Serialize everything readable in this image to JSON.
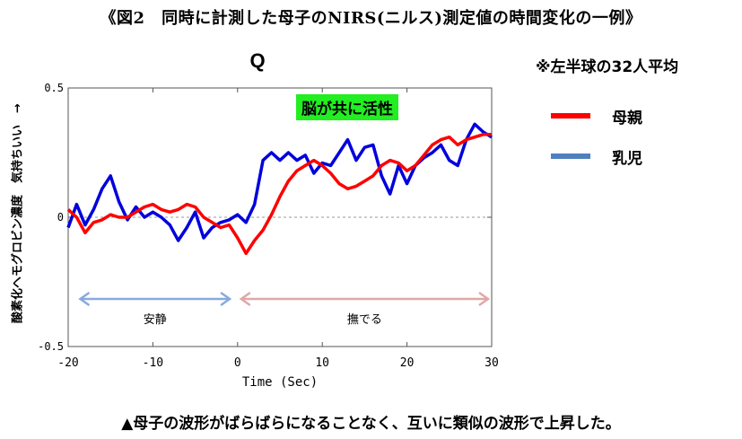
{
  "page": {
    "title": "《図2　同時に計測した母子のNIRS(ニルス)測定値の時間変化の一例》",
    "note": "※左半球の32人平均",
    "caption": "▲母子の波形がばらばらになることなく、互いに類似の波形で上昇した。",
    "highlight": "脳が共に活性"
  },
  "chart_data": {
    "type": "line",
    "title": "Q",
    "xlabel": "Time (Sec)",
    "ylabel": "酸素化ヘモグロビン濃度　気持ちいい　→",
    "xlim": [
      -20,
      30
    ],
    "ylim": [
      -0.5,
      0.5
    ],
    "x_ticks": [
      "-20",
      "-10",
      "0",
      "10",
      "20",
      "30"
    ],
    "y_ticks": [
      "0.5",
      "0",
      "-0.5"
    ],
    "grid": false,
    "legend_position": "right",
    "series": [
      {
        "name": "母親",
        "color": "#ff0000",
        "x": [
          -20,
          -19,
          -18,
          -17,
          -16,
          -15,
          -14,
          -13,
          -12,
          -11,
          -10,
          -9,
          -8,
          -7,
          -6,
          -5,
          -4,
          -3,
          -2,
          -1,
          0,
          1,
          2,
          3,
          4,
          5,
          6,
          7,
          8,
          9,
          10,
          11,
          12,
          13,
          14,
          15,
          16,
          17,
          18,
          19,
          20,
          21,
          22,
          23,
          24,
          25,
          26,
          27,
          28,
          29,
          30
        ],
        "y": [
          0.03,
          0.0,
          -0.06,
          -0.02,
          -0.01,
          0.01,
          0.0,
          0.0,
          0.02,
          0.04,
          0.05,
          0.03,
          0.02,
          0.03,
          0.05,
          0.04,
          0.0,
          -0.02,
          -0.04,
          -0.03,
          -0.08,
          -0.14,
          -0.09,
          -0.05,
          0.01,
          0.08,
          0.14,
          0.18,
          0.2,
          0.22,
          0.2,
          0.17,
          0.13,
          0.11,
          0.12,
          0.14,
          0.16,
          0.2,
          0.22,
          0.21,
          0.18,
          0.2,
          0.24,
          0.28,
          0.3,
          0.31,
          0.28,
          0.3,
          0.31,
          0.32,
          0.32
        ]
      },
      {
        "name": "乳児",
        "color": "#0000dd",
        "x": [
          -20,
          -19,
          -18,
          -17,
          -16,
          -15,
          -14,
          -13,
          -12,
          -11,
          -10,
          -9,
          -8,
          -7,
          -6,
          -5,
          -4,
          -3,
          -2,
          -1,
          0,
          1,
          2,
          3,
          4,
          5,
          6,
          7,
          8,
          9,
          10,
          11,
          12,
          13,
          14,
          15,
          16,
          17,
          18,
          19,
          20,
          21,
          22,
          23,
          24,
          25,
          26,
          27,
          28,
          29,
          30
        ],
        "y": [
          -0.04,
          0.05,
          -0.03,
          0.03,
          0.11,
          0.16,
          0.06,
          -0.01,
          0.04,
          0.0,
          0.02,
          0.0,
          -0.03,
          -0.09,
          -0.04,
          0.02,
          -0.08,
          -0.04,
          -0.02,
          -0.01,
          0.01,
          -0.02,
          0.05,
          0.22,
          0.25,
          0.22,
          0.25,
          0.22,
          0.24,
          0.17,
          0.21,
          0.2,
          0.25,
          0.3,
          0.22,
          0.27,
          0.28,
          0.16,
          0.09,
          0.2,
          0.13,
          0.2,
          0.23,
          0.25,
          0.28,
          0.22,
          0.2,
          0.3,
          0.36,
          0.33,
          0.31
        ]
      }
    ],
    "annotations": [
      {
        "text": "安静",
        "x_range": [
          -19,
          -0.5
        ],
        "color": "#88aadd"
      },
      {
        "text": "撫でる",
        "x_range": [
          0,
          30
        ],
        "color": "#e0a8a8"
      }
    ]
  }
}
